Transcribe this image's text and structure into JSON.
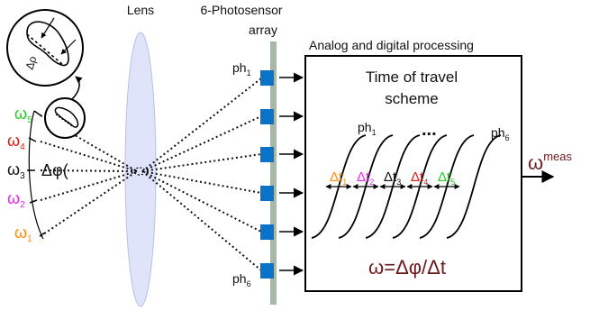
{
  "labels": {
    "lens": "Lens",
    "sensor_line1": "6-Photosensor",
    "sensor_line2": "array",
    "processing": "Analog and digital processing",
    "title_line1": "Time of travel",
    "title_line2": "scheme",
    "ph1_side_base": "ph",
    "ph1_side_sub": "1",
    "ph6_side_base": "ph",
    "ph6_side_sub": "6",
    "ph1_curve_base": "ph",
    "ph1_curve_sub": "1",
    "ph6_curve_base": "ph",
    "ph6_curve_sub": "6",
    "dots": "...",
    "out_base": "ω",
    "out_sup": "meas",
    "formula": "ω=Δφ/Δt",
    "inset_label": "Δρ",
    "delta_phi": "Δφ("
  },
  "omegas": [
    {
      "base": "ω",
      "sub": "5",
      "color": "#22cc22"
    },
    {
      "base": "ω",
      "sub": "4",
      "color": "#ee1111"
    },
    {
      "base": "ω",
      "sub": "3",
      "color": "#111111"
    },
    {
      "base": "ω",
      "sub": "2",
      "color": "#ee22ee"
    },
    {
      "base": "ω",
      "sub": "1",
      "color": "#ff8800"
    }
  ],
  "intervals": [
    {
      "base": "Δt",
      "sub": "1",
      "color": "#ff8800"
    },
    {
      "base": "Δt",
      "sub": "2",
      "color": "#ee22ee"
    },
    {
      "base": "Δt",
      "sub": "3",
      "color": "#111111"
    },
    {
      "base": "Δt",
      "sub": "4",
      "color": "#ee1111"
    },
    {
      "base": "Δt",
      "sub": "5",
      "color": "#22cc22"
    }
  ],
  "colors": {
    "sensor": "#0a72c8",
    "bar": "#a8b8a8",
    "lens": "#dfe4fb",
    "formula": "#6b1a1a",
    "output": "#6b1a1a"
  }
}
